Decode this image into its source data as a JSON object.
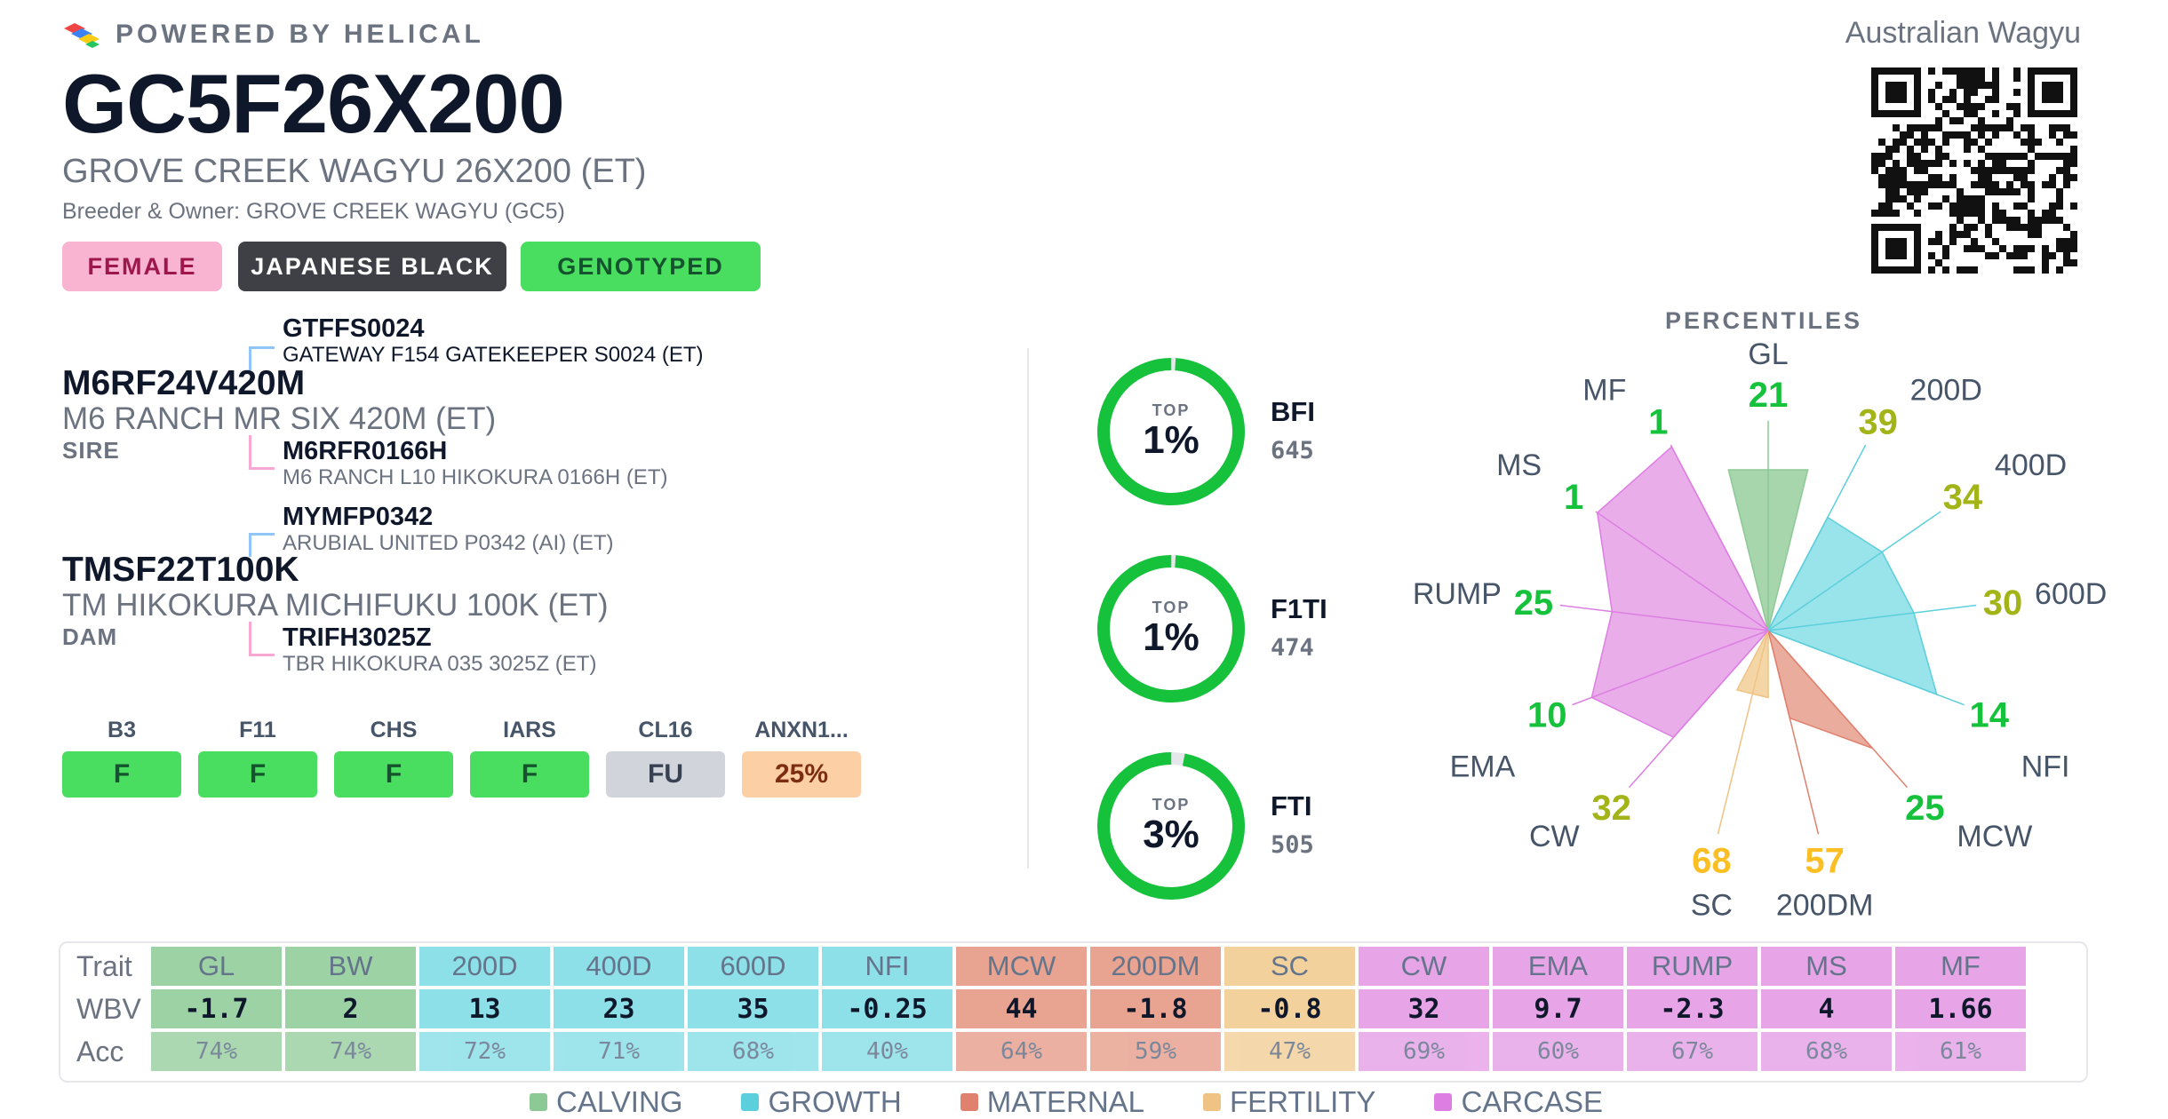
{
  "brand": {
    "powered_by": "POWERED BY HELICAL"
  },
  "association": "Australian Wagyu",
  "animal": {
    "id": "GC5F26X200",
    "name": "GROVE CREEK WAGYU 26X200 (ET)",
    "breeder": "Breeder & Owner: GROVE CREEK WAGYU (GC5)"
  },
  "badges": [
    {
      "label": "FEMALE",
      "bg": "#f8b4d0",
      "fg": "#9d174d"
    },
    {
      "label": "JAPANESE BLACK",
      "bg": "#3f3f46",
      "fg": "#ffffff"
    },
    {
      "label": "GENOTYPED",
      "bg": "#4ade60",
      "fg": "#14532d"
    }
  ],
  "pedigree": {
    "sire": {
      "role": "SIRE",
      "id": "M6RF24V420M",
      "name": "M6 RANCH MR SIX 420M (ET)",
      "father": {
        "id": "GTFFS0024",
        "name": "GATEWAY F154 GATEKEEPER S0024 (ET)"
      },
      "mother": {
        "id": "M6RFR0166H",
        "name": "M6 RANCH L10 HIKOKURA 0166H (ET)"
      }
    },
    "dam": {
      "role": "DAM",
      "id": "TMSF22T100K",
      "name": "TM HIKOKURA MICHIFUKU 100K (ET)",
      "father": {
        "id": "MYMFP0342",
        "name": "ARUBIAL UNITED P0342 (AI) (ET)"
      },
      "mother": {
        "id": "TRIFH3025Z",
        "name": "TBR HIKOKURA 035 3025Z (ET)"
      }
    }
  },
  "genetic_conditions": [
    {
      "label": "B3",
      "value": "F",
      "bg": "#4ade60",
      "fg": "#14532d"
    },
    {
      "label": "F11",
      "value": "F",
      "bg": "#4ade60",
      "fg": "#14532d"
    },
    {
      "label": "CHS",
      "value": "F",
      "bg": "#4ade60",
      "fg": "#14532d"
    },
    {
      "label": "IARS",
      "value": "F",
      "bg": "#4ade60",
      "fg": "#14532d"
    },
    {
      "label": "CL16",
      "value": "FU",
      "bg": "#d1d5db",
      "fg": "#374151"
    },
    {
      "label": "ANXN1...",
      "value": "25%",
      "bg": "#fdcfa5",
      "fg": "#7c2d12"
    }
  ],
  "indexes": [
    {
      "top_label": "TOP",
      "percent_label": "1%",
      "percent": 1,
      "name": "BFI",
      "value": "645"
    },
    {
      "top_label": "TOP",
      "percent_label": "1%",
      "percent": 1,
      "name": "F1TI",
      "value": "474"
    },
    {
      "top_label": "TOP",
      "percent_label": "3%",
      "percent": 3,
      "name": "FTI",
      "value": "505"
    }
  ],
  "percentiles": {
    "title": "PERCENTILES",
    "traits": [
      {
        "trait": "GL",
        "percentile": 21,
        "group": "calving"
      },
      {
        "trait": "200D",
        "percentile": 39,
        "group": "growth"
      },
      {
        "trait": "400D",
        "percentile": 34,
        "group": "growth"
      },
      {
        "trait": "600D",
        "percentile": 30,
        "group": "growth"
      },
      {
        "trait": "NFI",
        "percentile": 14,
        "group": "growth"
      },
      {
        "trait": "MCW",
        "percentile": 25,
        "group": "maternal"
      },
      {
        "trait": "200DM",
        "percentile": 57,
        "group": "maternal"
      },
      {
        "trait": "SC",
        "percentile": 68,
        "group": "fertility"
      },
      {
        "trait": "CW",
        "percentile": 32,
        "group": "carcase"
      },
      {
        "trait": "EMA",
        "percentile": 10,
        "group": "carcase"
      },
      {
        "trait": "RUMP",
        "percentile": 25,
        "group": "carcase"
      },
      {
        "trait": "MS",
        "percentile": 1,
        "group": "carcase"
      },
      {
        "trait": "MF",
        "percentile": 1,
        "group": "carcase"
      }
    ],
    "value_colors": {
      "green": "#16c23c",
      "olive": "#a3b418",
      "amber": "#fbbf24"
    }
  },
  "groups": {
    "calving": {
      "label": "CALVING",
      "color": "#8cc994",
      "fill": "#9dd2a4"
    },
    "growth": {
      "label": "GROWTH",
      "color": "#5ccfdc",
      "fill": "#8ee0e8"
    },
    "maternal": {
      "label": "MATERNAL",
      "color": "#e0806e",
      "fill": "#e8a391"
    },
    "fertility": {
      "label": "FERTILITY",
      "color": "#efc383",
      "fill": "#f3d19c"
    },
    "carcase": {
      "label": "CARCASE",
      "color": "#dd7ee3",
      "fill": "#e7a5e7"
    }
  },
  "ebv_table": {
    "row_labels": {
      "trait": "Trait",
      "wbv": "WBV",
      "acc": "Acc"
    },
    "columns": [
      {
        "trait": "GL",
        "wbv": "-1.7",
        "acc": "74%",
        "group": "calving"
      },
      {
        "trait": "BW",
        "wbv": "2",
        "acc": "74%",
        "group": "calving"
      },
      {
        "trait": "200D",
        "wbv": "13",
        "acc": "72%",
        "group": "growth"
      },
      {
        "trait": "400D",
        "wbv": "23",
        "acc": "71%",
        "group": "growth"
      },
      {
        "trait": "600D",
        "wbv": "35",
        "acc": "68%",
        "group": "growth"
      },
      {
        "trait": "NFI",
        "wbv": "-0.25",
        "acc": "40%",
        "group": "growth"
      },
      {
        "trait": "MCW",
        "wbv": "44",
        "acc": "64%",
        "group": "maternal"
      },
      {
        "trait": "200DM",
        "wbv": "-1.8",
        "acc": "59%",
        "group": "maternal"
      },
      {
        "trait": "SC",
        "wbv": "-0.8",
        "acc": "47%",
        "group": "fertility"
      },
      {
        "trait": "CW",
        "wbv": "32",
        "acc": "69%",
        "group": "carcase"
      },
      {
        "trait": "EMA",
        "wbv": "9.7",
        "acc": "60%",
        "group": "carcase"
      },
      {
        "trait": "RUMP",
        "wbv": "-2.3",
        "acc": "67%",
        "group": "carcase"
      },
      {
        "trait": "MS",
        "wbv": "4",
        "acc": "68%",
        "group": "carcase"
      },
      {
        "trait": "MF",
        "wbv": "1.66",
        "acc": "61%",
        "group": "carcase"
      }
    ]
  },
  "legend": [
    "calving",
    "growth",
    "maternal",
    "fertility",
    "carcase"
  ]
}
